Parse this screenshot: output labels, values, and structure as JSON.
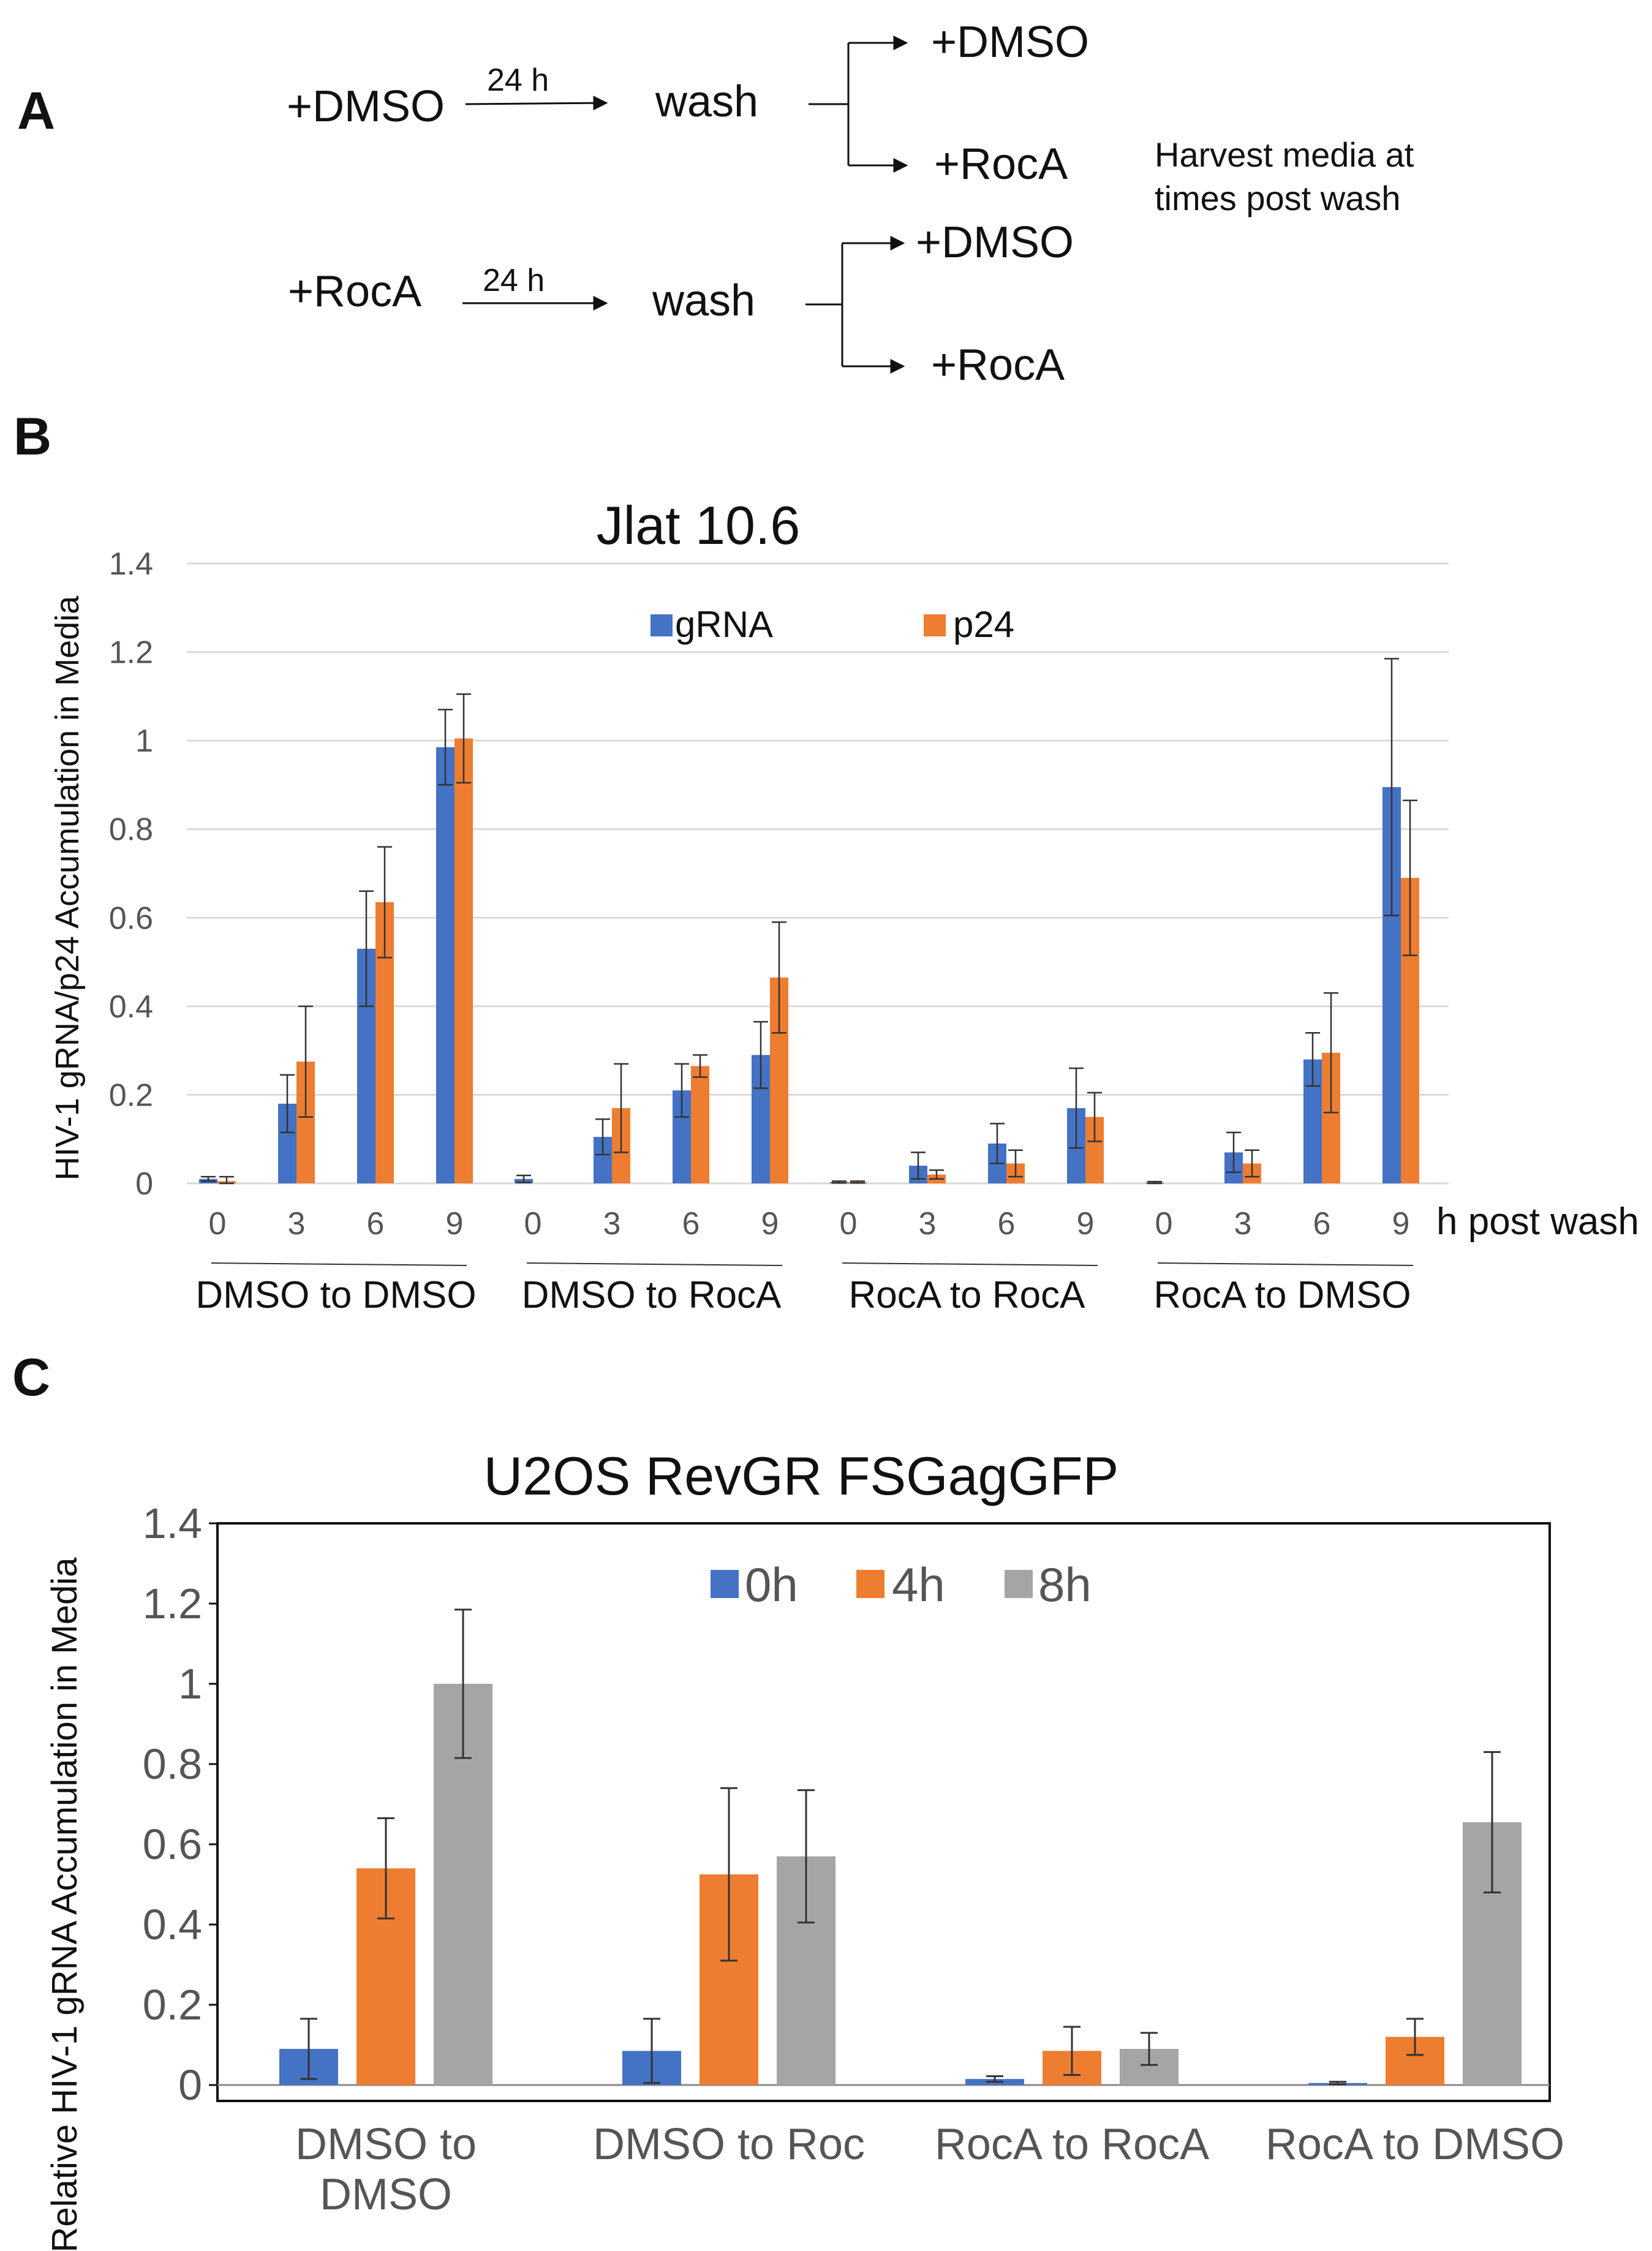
{
  "panel_a": {
    "letter": "A",
    "rows": [
      {
        "start": "+DMSO",
        "duration": "24 h",
        "step": "wash",
        "branches": [
          "+DMSO",
          "+RocA"
        ]
      },
      {
        "start": "+RocA",
        "duration": "24 h",
        "step": "wash",
        "branches": [
          "+DMSO",
          "+RocA"
        ]
      }
    ],
    "note_lines": [
      "Harvest media at",
      "times post wash"
    ]
  },
  "chart_data": [
    {
      "panel": "B",
      "type": "bar",
      "title": "Jlat 10.6",
      "ylabel": "HIV-1 gRNA/p24 Accumulation in Media",
      "xlabel": "h post wash",
      "ylim": [
        0,
        1.4
      ],
      "yticks": [
        "0",
        "0.2",
        "0.4",
        "0.6",
        "0.8",
        "1",
        "1.2",
        "1.4"
      ],
      "grid": true,
      "legend": "top-center",
      "groups": [
        "DMSO to DMSO",
        "DMSO to RocA",
        "RocA  to RocA",
        "RocA to DMSO"
      ],
      "categories": [
        "0",
        "3",
        "6",
        "9"
      ],
      "series": [
        {
          "name": "gRNA",
          "color": "#4472C4",
          "values": [
            [
              0.01,
              0.18,
              0.53,
              0.985
            ],
            [
              0.01,
              0.105,
              0.21,
              0.29
            ],
            [
              0.003,
              0.04,
              0.09,
              0.17
            ],
            [
              0.002,
              0.07,
              0.28,
              0.895
            ]
          ],
          "errors": [
            [
              0.005,
              0.065,
              0.13,
              0.085
            ],
            [
              0.008,
              0.04,
              0.06,
              0.075
            ],
            [
              0.002,
              0.03,
              0.045,
              0.09
            ],
            [
              0.002,
              0.045,
              0.06,
              0.29
            ]
          ]
        },
        {
          "name": "p24",
          "color": "#ED7D31",
          "values": [
            [
              0.005,
              0.275,
              0.635,
              1.005
            ],
            [
              0,
              0.17,
              0.265,
              0.465
            ],
            [
              0.003,
              0.02,
              0.045,
              0.15
            ],
            [
              0,
              0.045,
              0.295,
              0.69
            ]
          ],
          "errors": [
            [
              0.01,
              0.125,
              0.125,
              0.1
            ],
            [
              0,
              0.1,
              0.025,
              0.125
            ],
            [
              0.002,
              0.01,
              0.03,
              0.055
            ],
            [
              0,
              0.03,
              0.135,
              0.175
            ]
          ]
        }
      ]
    },
    {
      "panel": "C",
      "type": "bar",
      "title": "U2OS RevGR FSGagGFP",
      "ylabel": "Relative HIV-1 gRNA Accumulation in Media",
      "xlabel": "",
      "ylim": [
        0,
        1.4
      ],
      "yticks": [
        "0",
        "0.2",
        "0.4",
        "0.6",
        "0.8",
        "1",
        "1.2",
        "1.4"
      ],
      "grid": false,
      "legend": "top-center",
      "categories": [
        [
          "DMSO to",
          "DMSO"
        ],
        [
          "DMSO to Roc"
        ],
        [
          "RocA to RocA"
        ],
        [
          "RocA to DMSO"
        ]
      ],
      "series": [
        {
          "name": "0h",
          "color": "#4472C4",
          "values": [
            0.09,
            0.085,
            0.015,
            0.005
          ],
          "errors": [
            0.075,
            0.08,
            0.007,
            0.003
          ]
        },
        {
          "name": "4h",
          "color": "#ED7D31",
          "values": [
            0.54,
            0.525,
            0.085,
            0.12
          ],
          "errors": [
            0.125,
            0.215,
            0.06,
            0.045
          ]
        },
        {
          "name": "8h",
          "color": "#A5A5A5",
          "values": [
            1.0,
            0.57,
            0.09,
            0.655
          ],
          "errors": [
            0.185,
            0.165,
            0.04,
            0.175
          ]
        }
      ]
    }
  ]
}
